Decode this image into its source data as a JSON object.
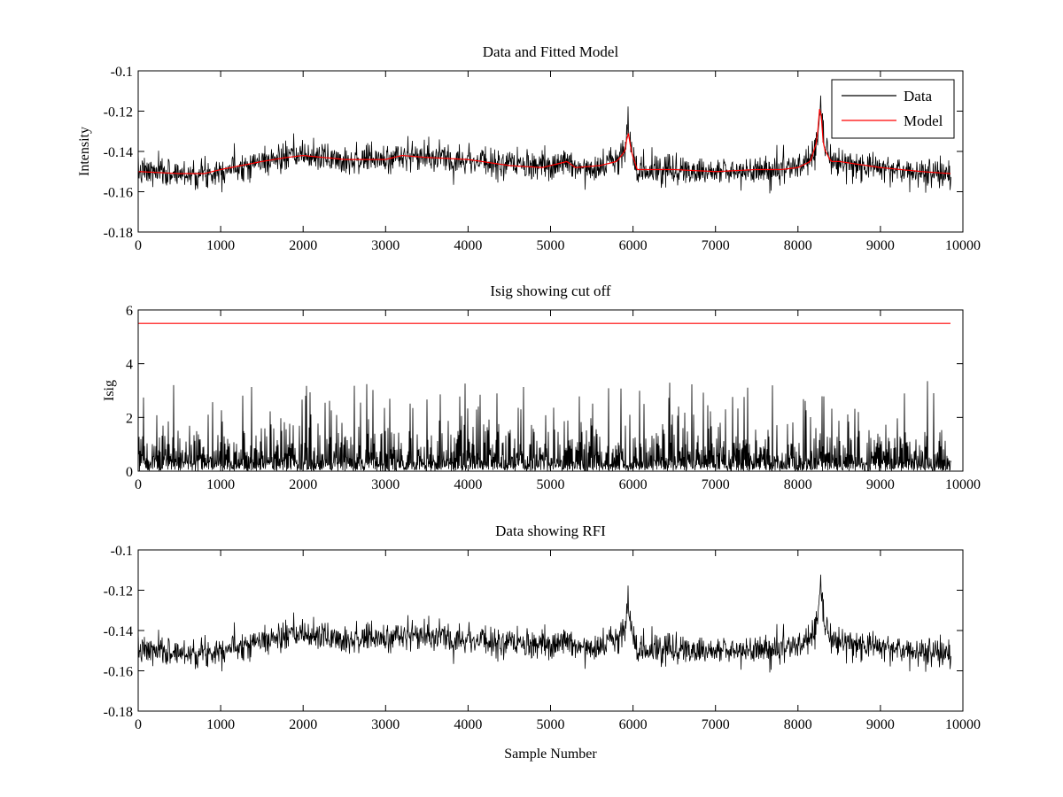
{
  "chart_data": [
    {
      "type": "line",
      "title": "Data and Fitted Model",
      "xlabel": "",
      "ylabel": "Intensity",
      "xlim": [
        0,
        10000
      ],
      "ylim": [
        -0.18,
        -0.1
      ],
      "xticks": [
        0,
        1000,
        2000,
        3000,
        4000,
        5000,
        6000,
        7000,
        8000,
        9000,
        10000
      ],
      "yticks": [
        -0.18,
        -0.16,
        -0.14,
        -0.12,
        -0.1
      ],
      "legend": "top-right",
      "grid": false,
      "series": [
        {
          "name": "Data",
          "color": "#000000",
          "kind": "noisy",
          "noise_amplitude": 0.004,
          "seed": 7,
          "x": [
            0,
            500,
            800,
            1000,
            1500,
            1800,
            2000,
            2500,
            3000,
            3200,
            3500,
            4000,
            4500,
            4900,
            5100,
            5200,
            5300,
            5600,
            5800,
            5900,
            5940,
            5980,
            6050,
            6500,
            7000,
            7500,
            7800,
            8000,
            8150,
            8230,
            8270,
            8310,
            8400,
            8500,
            9000,
            9500,
            9850
          ],
          "y": [
            -0.15,
            -0.151,
            -0.151,
            -0.149,
            -0.145,
            -0.143,
            -0.142,
            -0.144,
            -0.144,
            -0.142,
            -0.143,
            -0.144,
            -0.147,
            -0.148,
            -0.146,
            -0.145,
            -0.148,
            -0.147,
            -0.145,
            -0.14,
            -0.128,
            -0.14,
            -0.149,
            -0.149,
            -0.15,
            -0.149,
            -0.149,
            -0.148,
            -0.145,
            -0.135,
            -0.113,
            -0.138,
            -0.145,
            -0.145,
            -0.148,
            -0.15,
            -0.151
          ]
        },
        {
          "name": "Model",
          "color": "#ff0000",
          "kind": "smooth",
          "x": [
            0,
            500,
            800,
            1000,
            1500,
            1800,
            2000,
            2500,
            3000,
            3200,
            3500,
            4000,
            4500,
            4900,
            5100,
            5200,
            5300,
            5600,
            5800,
            5900,
            5940,
            5980,
            6050,
            6500,
            7000,
            7500,
            7800,
            8000,
            8150,
            8230,
            8270,
            8310,
            8400,
            8500,
            9000,
            9500,
            9850
          ],
          "y": [
            -0.15,
            -0.151,
            -0.151,
            -0.149,
            -0.145,
            -0.143,
            -0.142,
            -0.144,
            -0.144,
            -0.142,
            -0.143,
            -0.144,
            -0.147,
            -0.148,
            -0.146,
            -0.145,
            -0.148,
            -0.147,
            -0.145,
            -0.14,
            -0.13,
            -0.14,
            -0.149,
            -0.149,
            -0.15,
            -0.149,
            -0.149,
            -0.148,
            -0.145,
            -0.135,
            -0.115,
            -0.138,
            -0.145,
            -0.145,
            -0.148,
            -0.15,
            -0.151
          ]
        }
      ]
    },
    {
      "type": "line",
      "title": "Isig showing cut off",
      "xlabel": "",
      "ylabel": "Isig",
      "xlim": [
        0,
        10000
      ],
      "ylim": [
        0,
        6
      ],
      "xticks": [
        0,
        1000,
        2000,
        3000,
        4000,
        5000,
        6000,
        7000,
        8000,
        9000,
        10000
      ],
      "yticks": [
        0,
        2,
        4,
        6
      ],
      "grid": false,
      "series": [
        {
          "color": "#000000",
          "kind": "abs-noise",
          "seed": 13,
          "x_end": 9850,
          "typical_max": 2.3,
          "peak_max": 4.0
        },
        {
          "color": "#ff0000",
          "kind": "constant",
          "x": [
            0,
            9850
          ],
          "y": [
            5.5,
            5.5
          ]
        }
      ]
    },
    {
      "type": "line",
      "title": "Data showing RFI",
      "xlabel": "Sample Number",
      "ylabel": "",
      "xlim": [
        0,
        10000
      ],
      "ylim": [
        -0.18,
        -0.1
      ],
      "xticks": [
        0,
        1000,
        2000,
        3000,
        4000,
        5000,
        6000,
        7000,
        8000,
        9000,
        10000
      ],
      "yticks": [
        -0.18,
        -0.16,
        -0.14,
        -0.12,
        -0.1
      ],
      "grid": false,
      "series": [
        {
          "color": "#000000",
          "kind": "noisy",
          "noise_amplitude": 0.004,
          "seed": 7,
          "x": [
            0,
            500,
            800,
            1000,
            1500,
            1800,
            2000,
            2500,
            3000,
            3200,
            3500,
            4000,
            4500,
            4900,
            5100,
            5200,
            5300,
            5600,
            5800,
            5900,
            5940,
            5980,
            6050,
            6500,
            7000,
            7500,
            7800,
            8000,
            8150,
            8230,
            8270,
            8310,
            8400,
            8500,
            9000,
            9500,
            9850
          ],
          "y": [
            -0.15,
            -0.151,
            -0.151,
            -0.149,
            -0.145,
            -0.143,
            -0.142,
            -0.144,
            -0.144,
            -0.142,
            -0.143,
            -0.144,
            -0.147,
            -0.148,
            -0.146,
            -0.145,
            -0.148,
            -0.147,
            -0.145,
            -0.14,
            -0.128,
            -0.14,
            -0.149,
            -0.149,
            -0.15,
            -0.149,
            -0.149,
            -0.148,
            -0.145,
            -0.135,
            -0.113,
            -0.138,
            -0.145,
            -0.145,
            -0.148,
            -0.15,
            -0.151
          ]
        }
      ]
    }
  ]
}
